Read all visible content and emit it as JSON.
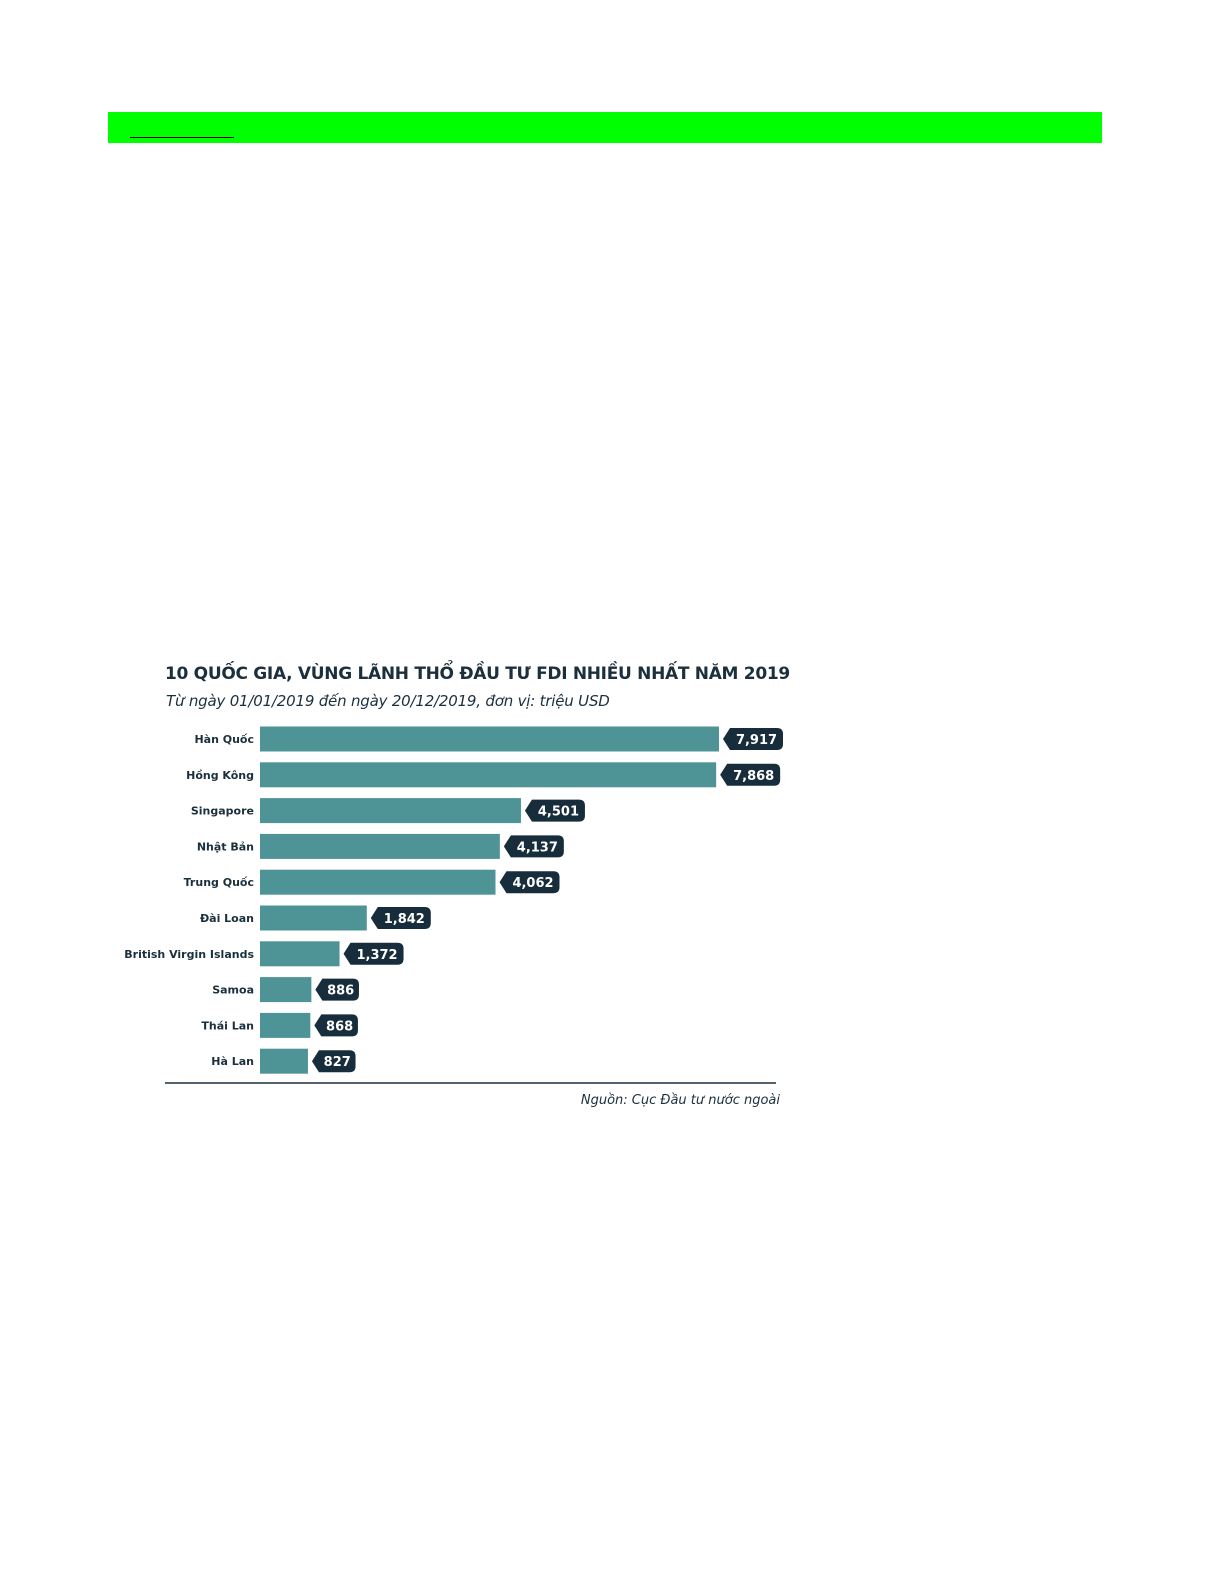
{
  "page": {
    "header_band_color": "#00ff00"
  },
  "chart_data": {
    "type": "bar",
    "orientation": "horizontal",
    "title": "10 QUỐC GIA, VÙNG LÃNH THỔ ĐẦU TƯ FDI NHIỀU NHẤT NĂM 2019",
    "subtitle": "Từ ngày 01/01/2019 đến ngày 20/12/2019, đơn vị: triệu USD",
    "source": "Nguồn: Cục Đầu tư nước ngoài",
    "categories": [
      "Hàn Quốc",
      "Hồng Kông",
      "Singapore",
      "Nhật Bản",
      "Trung Quốc",
      "Đài Loan",
      "British Virgin Islands",
      "Samoa",
      "Thái Lan",
      "Hà Lan"
    ],
    "values": [
      7917,
      7868,
      4501,
      4137,
      4062,
      1842,
      1372,
      886,
      868,
      827
    ],
    "value_labels": [
      "7,917",
      "7,868",
      "4,501",
      "4,137",
      "4,062",
      "1,842",
      "1,372",
      "886",
      "868",
      "827"
    ],
    "xlim": [
      0,
      7917
    ],
    "grid": false,
    "legend": "none",
    "colors": {
      "bar": "#4e9396",
      "label_badge": "#182d3b",
      "label_text": "#ffffff",
      "text": "#1b2f3d",
      "baseline": "#1b2f3d"
    }
  }
}
